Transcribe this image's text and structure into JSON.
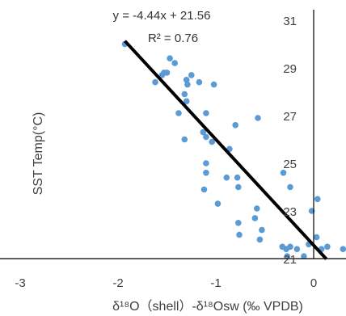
{
  "chart_data": {
    "type": "scatter",
    "title": "",
    "xlabel": "δ¹⁸O（shell）-δ¹⁸Osw (‰ VPDB)",
    "ylabel": "SST   Temp(°C)",
    "xlim": [
      -3,
      0.3
    ],
    "ylim": [
      21,
      31.5
    ],
    "x_ticks": [
      "-3",
      "-2",
      "-1",
      "0"
    ],
    "y_ticks": [
      "21",
      "23",
      "25",
      "27",
      "29",
      "31"
    ],
    "grid": false,
    "legend": "none",
    "equation": "y = -4.44x + 21.56",
    "r_squared_label": "R² = 0.76",
    "colors": {
      "points": "#5B9BD5",
      "trendline": "#000000",
      "axis": "#000000"
    },
    "series": [
      {
        "values": [
          [
            -1.93,
            30.0
          ],
          [
            -1.47,
            29.4
          ],
          [
            -1.42,
            29.2
          ],
          [
            -1.5,
            28.8
          ],
          [
            -1.53,
            28.8
          ],
          [
            -1.55,
            28.7
          ],
          [
            -1.62,
            28.4
          ],
          [
            -1.3,
            28.5
          ],
          [
            -1.25,
            28.7
          ],
          [
            -1.29,
            28.3
          ],
          [
            -1.17,
            28.4
          ],
          [
            -1.02,
            28.3
          ],
          [
            -1.32,
            27.9
          ],
          [
            -1.3,
            27.6
          ],
          [
            -1.38,
            27.1
          ],
          [
            -1.1,
            27.1
          ],
          [
            -0.8,
            26.6
          ],
          [
            -0.57,
            26.9
          ],
          [
            -1.13,
            26.3
          ],
          [
            -1.1,
            26.1
          ],
          [
            -1.32,
            26.0
          ],
          [
            -1.04,
            25.9
          ],
          [
            -0.86,
            25.6
          ],
          [
            -1.1,
            25.0
          ],
          [
            -1.1,
            24.6
          ],
          [
            -0.89,
            24.4
          ],
          [
            -0.78,
            24.4
          ],
          [
            -1.12,
            23.9
          ],
          [
            -0.77,
            24.0
          ],
          [
            -0.31,
            24.6
          ],
          [
            -0.24,
            24.0
          ],
          [
            -0.98,
            23.3
          ],
          [
            -0.58,
            23.1
          ],
          [
            -0.6,
            22.7
          ],
          [
            -0.77,
            22.5
          ],
          [
            -0.53,
            22.2
          ],
          [
            -0.76,
            22.0
          ],
          [
            -0.55,
            21.8
          ],
          [
            -0.02,
            23.0
          ],
          [
            0.04,
            23.5
          ],
          [
            -0.24,
            21.5
          ],
          [
            -0.28,
            21.4
          ],
          [
            -0.32,
            21.5
          ],
          [
            -0.17,
            21.4
          ],
          [
            -0.1,
            21.1
          ],
          [
            -0.27,
            21.1
          ],
          [
            0.03,
            21.9
          ],
          [
            0.08,
            21.4
          ],
          [
            0.14,
            21.5
          ],
          [
            0.3,
            21.4
          ],
          [
            -0.05,
            21.6
          ]
        ]
      }
    ]
  }
}
